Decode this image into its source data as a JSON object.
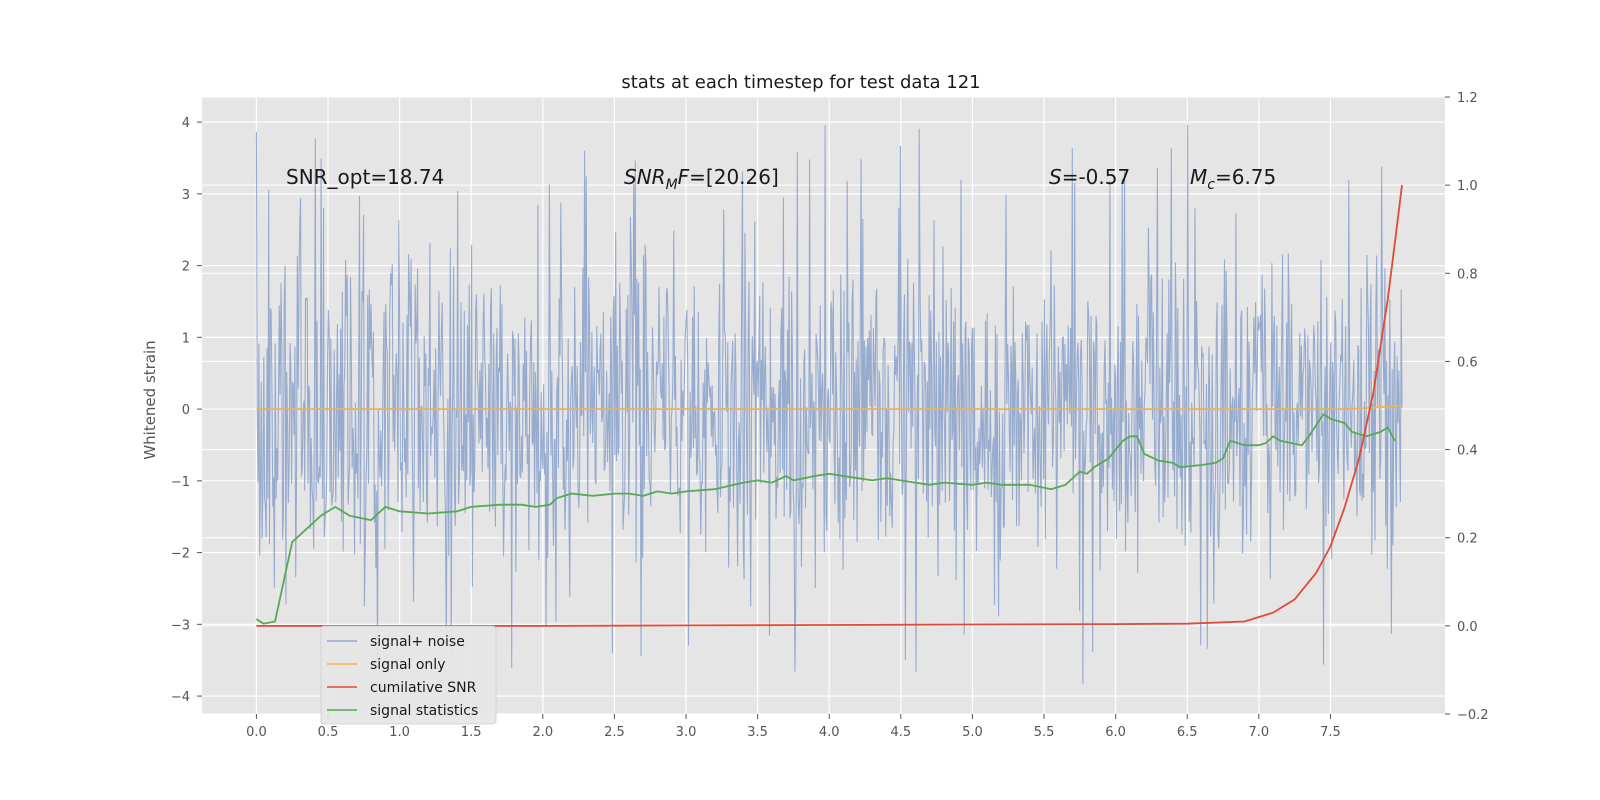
{
  "chart_data": {
    "type": "line",
    "title": "stats at each timestep for test data 121",
    "ylabel": "Whitened strain",
    "xlim": [
      -0.38,
      8.3
    ],
    "ylim": [
      -4.25,
      4.35
    ],
    "y2lim": [
      -0.2,
      1.2
    ],
    "x_ticks": [
      0.0,
      0.5,
      1.0,
      1.5,
      2.0,
      2.5,
      3.0,
      3.5,
      4.0,
      4.5,
      5.0,
      5.5,
      6.0,
      6.5,
      7.0,
      7.5
    ],
    "x_tick_labels": [
      "0.0",
      "0.5",
      "1.0",
      "1.5",
      "2.0",
      "2.5",
      "3.0",
      "3.5",
      "4.0",
      "4.5",
      "5.0",
      "5.5",
      "6.0",
      "6.5",
      "7.0",
      "7.5"
    ],
    "y_ticks": [
      -4,
      -3,
      -2,
      -1,
      0,
      1,
      2,
      3,
      4
    ],
    "y_tick_labels": [
      "−4",
      "−3",
      "−2",
      "−1",
      "0",
      "1",
      "2",
      "3",
      "4"
    ],
    "y2_ticks": [
      -0.2,
      0.0,
      0.2,
      0.4,
      0.6,
      0.8,
      1.0,
      1.2
    ],
    "y2_tick_labels": [
      "−0.2",
      "0.0",
      "0.2",
      "0.4",
      "0.6",
      "0.8",
      "1.0",
      "1.2"
    ],
    "grid": true,
    "legend_position": "lower-left",
    "annotations": {
      "snr_opt": "SNR_opt=18.74",
      "snr_mf_main": "SNR",
      "snr_mf_sub": "M",
      "snr_mf_f": "F",
      "snr_mf_value": "=[20.26]",
      "s_symbol": "S",
      "s_value": "=-0.57",
      "mc_symbol": "M",
      "mc_sub": "c",
      "mc_value": "=6.75"
    },
    "noise_summary": {
      "x_range": [
        0.0,
        8.0
      ],
      "typical_min": -2.2,
      "typical_max": 2.6,
      "peak_max": 3.98,
      "peak_min": -3.85
    },
    "series": [
      {
        "name": "signal+ noise",
        "color": "#92a8cd",
        "axis": "left"
      },
      {
        "name": "signal only",
        "color": "#f0b24d",
        "axis": "left",
        "x": [
          0.0,
          7.6,
          7.8,
          8.0
        ],
        "y": [
          0.0,
          0.0,
          0.02,
          0.05
        ]
      },
      {
        "name": "cumilative SNR",
        "color": "#e24a33",
        "axis": "right",
        "x": [
          0.0,
          1.0,
          2.0,
          3.0,
          4.0,
          5.0,
          6.0,
          6.5,
          6.9,
          7.1,
          7.25,
          7.4,
          7.5,
          7.6,
          7.7,
          7.8,
          7.9,
          7.95,
          8.0
        ],
        "y": [
          0.0,
          0.0,
          0.0,
          0.001,
          0.002,
          0.003,
          0.004,
          0.005,
          0.01,
          0.03,
          0.06,
          0.12,
          0.18,
          0.27,
          0.38,
          0.53,
          0.74,
          0.87,
          1.0
        ]
      },
      {
        "name": "signal statistics",
        "color": "#59a855",
        "axis": "right",
        "x": [
          0.0,
          0.05,
          0.13,
          0.25,
          0.45,
          0.55,
          0.65,
          0.8,
          0.9,
          1.0,
          1.2,
          1.4,
          1.5,
          1.7,
          1.85,
          1.95,
          2.05,
          2.1,
          2.2,
          2.35,
          2.5,
          2.6,
          2.7,
          2.8,
          2.9,
          3.0,
          3.2,
          3.4,
          3.5,
          3.6,
          3.7,
          3.75,
          3.9,
          4.0,
          4.1,
          4.2,
          4.3,
          4.4,
          4.5,
          4.7,
          4.8,
          5.0,
          5.1,
          5.2,
          5.4,
          5.55,
          5.65,
          5.75,
          5.8,
          5.85,
          5.95,
          6.05,
          6.1,
          6.15,
          6.2,
          6.3,
          6.4,
          6.45,
          6.6,
          6.7,
          6.75,
          6.8,
          6.9,
          7.0,
          7.05,
          7.1,
          7.15,
          7.3,
          7.35,
          7.45,
          7.5,
          7.6,
          7.65,
          7.75,
          7.8,
          7.85,
          7.9,
          7.95
        ],
        "y": [
          0.015,
          0.005,
          0.01,
          0.19,
          0.25,
          0.27,
          0.25,
          0.24,
          0.27,
          0.26,
          0.255,
          0.26,
          0.27,
          0.275,
          0.275,
          0.27,
          0.275,
          0.29,
          0.3,
          0.295,
          0.3,
          0.3,
          0.295,
          0.305,
          0.3,
          0.305,
          0.31,
          0.325,
          0.33,
          0.325,
          0.34,
          0.33,
          0.34,
          0.345,
          0.34,
          0.335,
          0.33,
          0.335,
          0.33,
          0.32,
          0.325,
          0.32,
          0.325,
          0.32,
          0.32,
          0.31,
          0.32,
          0.35,
          0.345,
          0.36,
          0.38,
          0.42,
          0.43,
          0.43,
          0.39,
          0.375,
          0.37,
          0.36,
          0.365,
          0.37,
          0.38,
          0.42,
          0.41,
          0.41,
          0.415,
          0.43,
          0.42,
          0.41,
          0.43,
          0.48,
          0.47,
          0.46,
          0.44,
          0.43,
          0.435,
          0.44,
          0.45,
          0.42
        ]
      }
    ]
  }
}
